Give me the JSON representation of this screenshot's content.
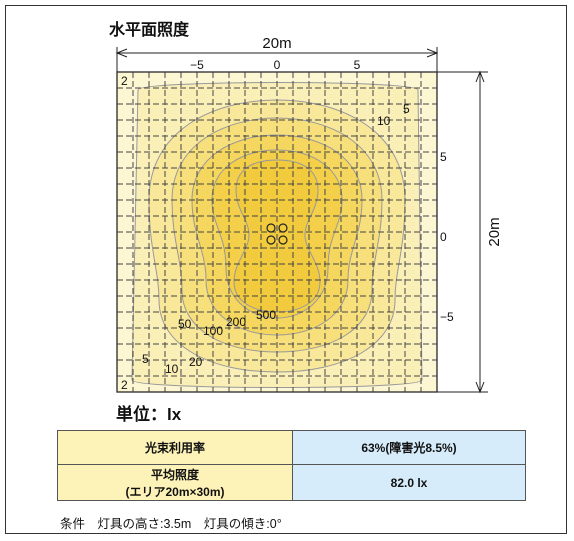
{
  "title": "水平面照度",
  "unit_label": "単位：lx",
  "dimensions": {
    "width": "20m",
    "height": "20m"
  },
  "axis": {
    "x_ticks": [
      "−5",
      "0",
      "5"
    ],
    "y_ticks": [
      "5",
      "0",
      "−5"
    ]
  },
  "contours": {
    "labels": [
      "2",
      "5",
      "10",
      "2",
      "5",
      "10",
      "20",
      "50",
      "100",
      "200",
      "500"
    ],
    "colors": [
      "#fdf6d3",
      "#fbefb8",
      "#f9e79a",
      "#f7df7c",
      "#f5d65e",
      "#f1ca3e"
    ]
  },
  "table": {
    "rows": [
      {
        "label": "光束利用率",
        "value": "63%(障害光8.5%)"
      },
      {
        "label_line1": "平均照度",
        "label_line2": "(エリア20m×30m)",
        "value": "82.0 lx"
      }
    ]
  },
  "conditions": "条件　灯具の高さ:3.5m　灯具の傾き:0°"
}
